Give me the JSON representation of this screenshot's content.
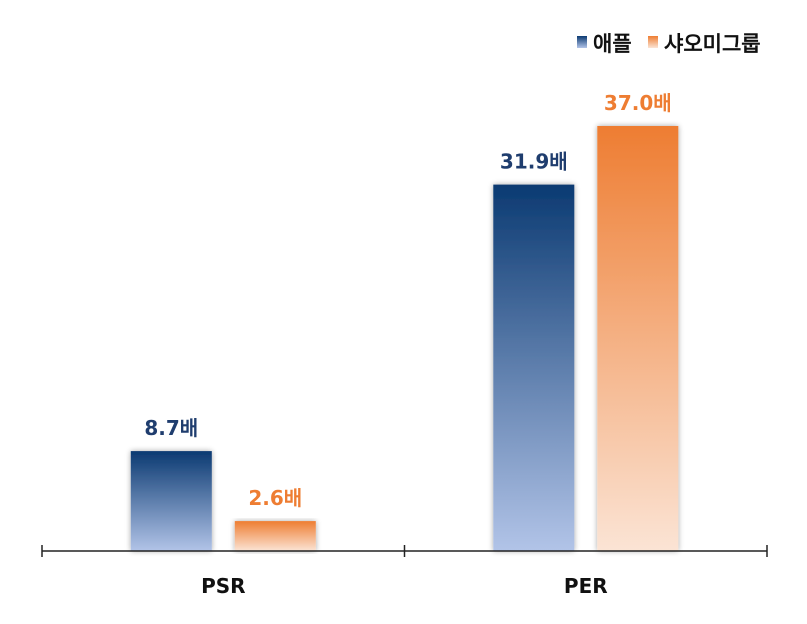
{
  "chart_data": {
    "type": "bar",
    "categories": [
      "PSR",
      "PER"
    ],
    "series": [
      {
        "name": "애플",
        "values": [
          8.7,
          31.9
        ],
        "labels": [
          "8.7배",
          "31.9배"
        ],
        "color_top": "#0b3a72",
        "color_bottom": "#b2c4e8",
        "label_color": "#1f3d6e"
      },
      {
        "name": "샤오미그룹",
        "values": [
          2.6,
          37.0
        ],
        "labels": [
          "2.6배",
          "37.0배"
        ],
        "color_top": "#ee7d32",
        "color_bottom": "#fbe4d5",
        "label_color": "#ee7d32"
      }
    ],
    "title": "",
    "xlabel": "",
    "ylabel": "",
    "ylim": [
      0,
      37.0
    ],
    "grid": false,
    "legend_position": "top-right"
  }
}
